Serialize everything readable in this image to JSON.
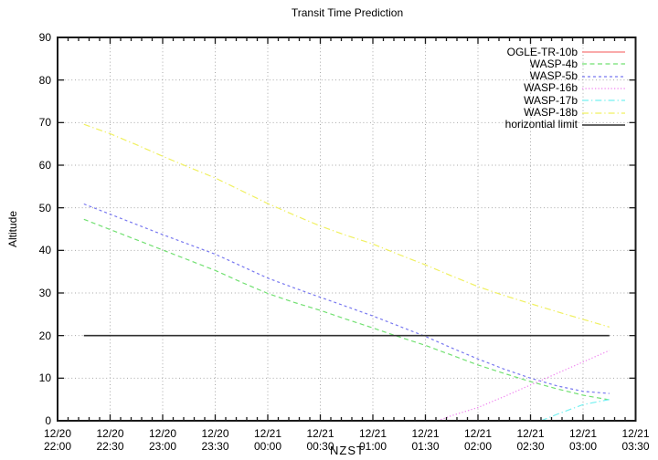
{
  "title": "Transit Time Prediction",
  "chart_data": {
    "type": "line",
    "title": "Transit Time Prediction",
    "xlabel": "NZST",
    "ylabel": "Altitude",
    "ylim": [
      0,
      90
    ],
    "ytick_step": 10,
    "ytick_labels": [
      "0",
      "10",
      "20",
      "30",
      "40",
      "50",
      "60",
      "70",
      "80",
      "90"
    ],
    "x_range_minutes": [
      0,
      330
    ],
    "x_minor_step_minutes": 6,
    "xticks": [
      {
        "minute": 0,
        "date": "12/20",
        "time": "22:00"
      },
      {
        "minute": 30,
        "date": "12/20",
        "time": "22:30"
      },
      {
        "minute": 60,
        "date": "12/20",
        "time": "23:00"
      },
      {
        "minute": 90,
        "date": "12/20",
        "time": "23:30"
      },
      {
        "minute": 120,
        "date": "12/21",
        "time": "00:00"
      },
      {
        "minute": 150,
        "date": "12/21",
        "time": "00:30"
      },
      {
        "minute": 180,
        "date": "12/21",
        "time": "01:00"
      },
      {
        "minute": 210,
        "date": "12/21",
        "time": "01:30"
      },
      {
        "minute": 240,
        "date": "12/21",
        "time": "02:00"
      },
      {
        "minute": 270,
        "date": "12/21",
        "time": "02:30"
      },
      {
        "minute": 300,
        "date": "12/21",
        "time": "03:00"
      },
      {
        "minute": 330,
        "date": "12/21",
        "time": "03:30"
      }
    ],
    "grid": true,
    "legend_position": "top-right",
    "colors": {
      "grid": "#a8a8a8",
      "border": "#1a1a1a",
      "text": "#000000"
    },
    "series": [
      {
        "name": "OGLE-TR-10b",
        "color": "#f87878",
        "style": "solid",
        "points": []
      },
      {
        "name": "WASP-4b",
        "color": "#72e072",
        "style": "dashed",
        "points": [
          [
            15,
            47.3
          ],
          [
            30,
            44.9
          ],
          [
            45,
            42.5
          ],
          [
            60,
            40.1
          ],
          [
            75,
            37.7
          ],
          [
            90,
            35.3
          ],
          [
            105,
            32.5
          ],
          [
            120,
            29.9
          ],
          [
            135,
            27.8
          ],
          [
            150,
            25.9
          ],
          [
            165,
            23.8
          ],
          [
            180,
            21.8
          ],
          [
            195,
            19.7
          ],
          [
            210,
            17.7
          ],
          [
            225,
            15.4
          ],
          [
            240,
            13.1
          ],
          [
            255,
            11.1
          ],
          [
            270,
            9.2
          ],
          [
            285,
            7.5
          ],
          [
            300,
            6.0
          ],
          [
            315,
            4.9
          ]
        ]
      },
      {
        "name": "WASP-5b",
        "color": "#7878f0",
        "style": "short-dash",
        "points": [
          [
            15,
            50.9
          ],
          [
            30,
            48.5
          ],
          [
            45,
            46.1
          ],
          [
            60,
            43.7
          ],
          [
            75,
            41.4
          ],
          [
            90,
            39.1
          ],
          [
            105,
            36.3
          ],
          [
            120,
            33.5
          ],
          [
            135,
            31.2
          ],
          [
            150,
            29.0
          ],
          [
            165,
            26.8
          ],
          [
            180,
            24.6
          ],
          [
            195,
            22.2
          ],
          [
            210,
            19.8
          ],
          [
            225,
            17.1
          ],
          [
            240,
            14.5
          ],
          [
            255,
            12.1
          ],
          [
            270,
            10.0
          ],
          [
            285,
            8.2
          ],
          [
            300,
            6.9
          ],
          [
            315,
            6.4
          ]
        ]
      },
      {
        "name": "WASP-16b",
        "color": "#f084f0",
        "style": "dotted",
        "points": [
          [
            217,
            0
          ],
          [
            225,
            1.2
          ],
          [
            240,
            3.1
          ],
          [
            255,
            5.7
          ],
          [
            270,
            8.4
          ],
          [
            285,
            11.1
          ],
          [
            300,
            13.8
          ],
          [
            315,
            16.5
          ]
        ]
      },
      {
        "name": "WASP-17b",
        "color": "#74f0f0",
        "style": "dash-dot",
        "points": [
          [
            276,
            0
          ],
          [
            285,
            1.5
          ],
          [
            300,
            3.8
          ],
          [
            315,
            5.0
          ]
        ]
      },
      {
        "name": "WASP-18b",
        "color": "#f0f060",
        "style": "dash-dot",
        "points": [
          [
            15,
            69.6
          ],
          [
            30,
            67.4
          ],
          [
            45,
            64.8
          ],
          [
            60,
            62.1
          ],
          [
            75,
            59.5
          ],
          [
            90,
            57.0
          ],
          [
            105,
            54.0
          ],
          [
            120,
            51.0
          ],
          [
            135,
            48.3
          ],
          [
            150,
            45.7
          ],
          [
            165,
            43.5
          ],
          [
            180,
            41.5
          ],
          [
            195,
            39.0
          ],
          [
            210,
            36.6
          ],
          [
            225,
            34.0
          ],
          [
            240,
            31.5
          ],
          [
            255,
            29.4
          ],
          [
            270,
            27.5
          ],
          [
            285,
            25.6
          ],
          [
            300,
            23.8
          ],
          [
            315,
            22.0
          ]
        ]
      },
      {
        "name": "horizontial limit",
        "color": "#303030",
        "style": "solid",
        "points": [
          [
            15,
            20
          ],
          [
            315,
            20
          ]
        ]
      }
    ]
  }
}
